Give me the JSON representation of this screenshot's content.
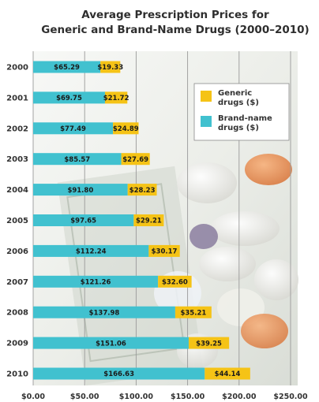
{
  "chart_data": {
    "type": "bar",
    "orientation": "horizontal",
    "stacked": true,
    "title": "Average Prescription Prices for",
    "subtitle": "Generic and Brand-Name Drugs (2000–2010)",
    "categories": [
      "2000",
      "2001",
      "2002",
      "2003",
      "2004",
      "2005",
      "2006",
      "2007",
      "2008",
      "2009",
      "2010"
    ],
    "series": [
      {
        "name": "Brand-name drugs ($)",
        "color": "#41c1cf",
        "values": [
          65.29,
          69.75,
          77.49,
          85.57,
          91.8,
          97.65,
          112.24,
          121.26,
          137.98,
          151.06,
          166.63
        ],
        "labels": [
          "$65.29",
          "$69.75",
          "$77.49",
          "$85.57",
          "$91.80",
          "$97.65",
          "$112.24",
          "$121.26",
          "$137.98",
          "$151.06",
          "$166.63"
        ]
      },
      {
        "name": "Generic drugs ($)",
        "color": "#f5c316",
        "values": [
          19.33,
          21.72,
          24.89,
          27.69,
          28.23,
          29.21,
          30.17,
          32.6,
          35.21,
          39.25,
          44.14
        ],
        "labels": [
          "$19.33",
          "$21.72",
          "$24.89",
          "$27.69",
          "$28.23",
          "$29.21",
          "$30.17",
          "$32.60",
          "$35.21",
          "$39.25",
          "$44.14"
        ]
      }
    ],
    "x_ticks": [
      0,
      50,
      100,
      150,
      200,
      250
    ],
    "x_tick_labels": [
      "$0.00",
      "$50.00",
      "$100.00",
      "$150.00",
      "$200.00",
      "$250.00"
    ],
    "xlim": [
      0,
      250
    ],
    "grid": true,
    "legend_position": "top-right",
    "legend": [
      {
        "line1": "Generic",
        "line2": "drugs ($)",
        "color": "#f5c316"
      },
      {
        "line1": "Brand-name",
        "line2": "drugs ($)",
        "color": "#41c1cf"
      }
    ]
  }
}
